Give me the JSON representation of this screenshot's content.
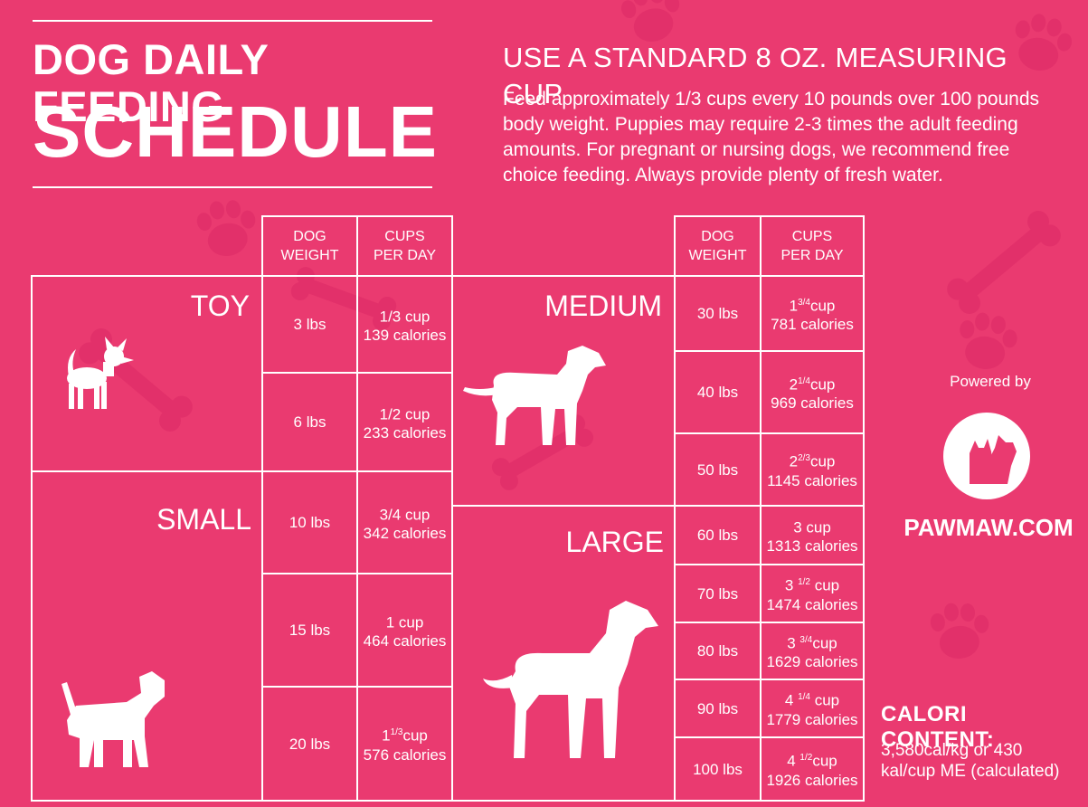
{
  "colors": {
    "background": "#ea3a70",
    "foreground": "#ffffff",
    "decor": "#e2306a"
  },
  "header": {
    "title_line1": "DOG DAILY FEEDING",
    "title_line2": "SCHEDULE",
    "subheading": "USE A STANDARD 8 OZ. MEASURING CUP",
    "intro": "Feed approximately 1/3 cups every 10 pounds over 100 pounds body weight. Puppies may require 2-3 times the adult feeding amounts. For pregnant or nursing dogs, we recommend free choice feeding. Always provide plenty of fresh water."
  },
  "table_headers": {
    "left": {
      "weight_line1": "DOG",
      "weight_line2": "WEIGHT",
      "cups_line1": "CUPS",
      "cups_line2": "PER DAY"
    },
    "right": {
      "weight_line1": "DOG",
      "weight_line2": "WEIGHT",
      "cups_line1": "CUPS",
      "cups_line2": "PER DAY"
    }
  },
  "categories": {
    "toy": "TOY",
    "small": "SMALL",
    "medium": "MEDIUM",
    "large": "LARGE"
  },
  "left_rows": [
    {
      "weight": "3 lbs",
      "cup_whole": "",
      "cup_frac": "",
      "cup_text": "1/3 cup",
      "calories": "139 calories"
    },
    {
      "weight": "6 lbs",
      "cup_whole": "",
      "cup_frac": "",
      "cup_text": "1/2 cup",
      "calories": "233 calories"
    },
    {
      "weight": "10 lbs",
      "cup_whole": "",
      "cup_frac": "",
      "cup_text": "3/4 cup",
      "calories": "342 calories"
    },
    {
      "weight": "15 lbs",
      "cup_whole": "",
      "cup_frac": "",
      "cup_text": "1 cup",
      "calories": "464 calories"
    },
    {
      "weight": "20 lbs",
      "cup_whole": "1",
      "cup_frac": "1/3",
      "cup_text": "cup",
      "calories": "576 calories"
    }
  ],
  "right_rows": [
    {
      "weight": "30 lbs",
      "cup_whole": "1",
      "cup_frac": "3/4",
      "cup_text": "cup",
      "calories": "781 calories"
    },
    {
      "weight": "40 lbs",
      "cup_whole": "2",
      "cup_frac": "1/4",
      "cup_text": "cup",
      "calories": "969 calories"
    },
    {
      "weight": "50 lbs",
      "cup_whole": "2",
      "cup_frac": "2/3",
      "cup_text": "cup",
      "calories": "1145 calories"
    },
    {
      "weight": "60 lbs",
      "cup_whole": "",
      "cup_frac": "",
      "cup_text": "3 cup",
      "calories": "1313 calories"
    },
    {
      "weight": "70 lbs",
      "cup_whole": "3 ",
      "cup_frac": "1/2",
      "cup_text": " cup",
      "calories": "1474 calories"
    },
    {
      "weight": "80 lbs",
      "cup_whole": "3 ",
      "cup_frac": "3/4",
      "cup_text": "cup",
      "calories": "1629 calories"
    },
    {
      "weight": "90 lbs",
      "cup_whole": "4 ",
      "cup_frac": "1/4",
      "cup_text": " cup",
      "calories": "1779 calories"
    },
    {
      "weight": "100 lbs",
      "cup_whole": "4 ",
      "cup_frac": "1/2",
      "cup_text": "cup",
      "calories": "1926 calories"
    }
  ],
  "sidebar": {
    "powered_by": "Powered by",
    "site": "PAWMAW.COM",
    "calorie_heading": "CALORI CONTENT:",
    "calorie_line1": "3,580cal/kg or 430",
    "calorie_line2": "kal/cup ME (calculated)"
  },
  "icons": [
    "paw-print-icon",
    "bone-icon",
    "toy-dog-icon",
    "small-dog-icon",
    "medium-dog-icon",
    "large-dog-icon",
    "pawmaw-logo-icon"
  ]
}
